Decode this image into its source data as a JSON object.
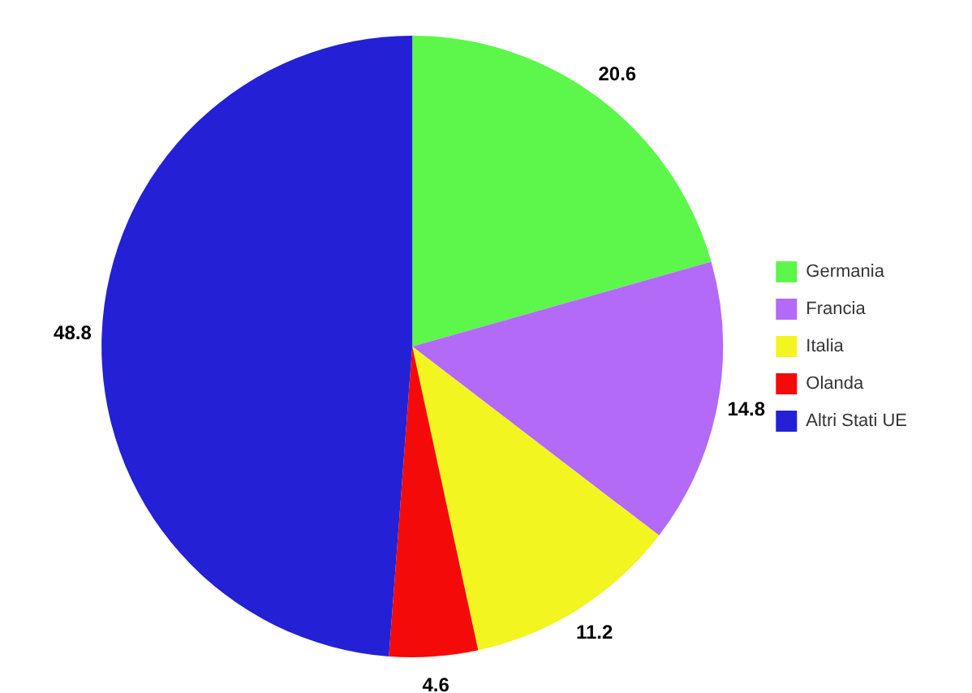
{
  "chart_data": {
    "type": "pie",
    "categories": [
      "Germania",
      "Francia",
      "Italia",
      "Olanda",
      "Altri Stati UE"
    ],
    "values": [
      20.6,
      14.8,
      11.2,
      4.6,
      48.8
    ],
    "colors": [
      "#5cf74a",
      "#b36af7",
      "#f2f51f",
      "#f50a0a",
      "#2420d6"
    ],
    "data_labels": true,
    "legend": "right"
  }
}
